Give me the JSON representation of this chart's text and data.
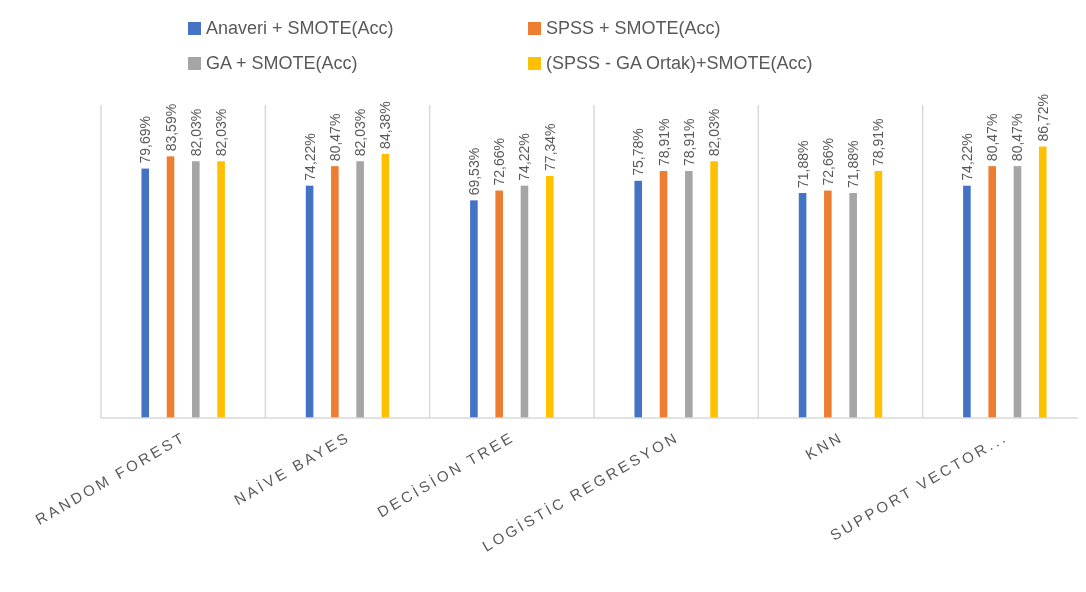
{
  "chart_data": {
    "type": "bar",
    "categories": [
      "RANDOM FOREST",
      "NAİVE BAYES",
      "DECİSİON TREE",
      "LOGİSTİC REGRESYON",
      "KNN",
      "SUPPORT VECTOR..."
    ],
    "series": [
      {
        "name": "Anaveri + SMOTE(Acc)",
        "color": "#4472c4",
        "values": [
          79.69,
          74.22,
          69.53,
          75.78,
          71.88,
          74.22
        ],
        "value_labels": [
          "79,69%",
          "74,22%",
          "69,53%",
          "75,78%",
          "71,88%",
          "74,22%"
        ]
      },
      {
        "name": "SPSS + SMOTE(Acc)",
        "color": "#ed7d31",
        "values": [
          83.59,
          80.47,
          72.66,
          78.91,
          72.66,
          80.47
        ],
        "value_labels": [
          "83,59%",
          "80,47%",
          "72,66%",
          "78,91%",
          "72,66%",
          "80,47%"
        ]
      },
      {
        "name": "GA + SMOTE(Acc)",
        "color": "#a5a5a5",
        "values": [
          82.03,
          82.03,
          74.22,
          78.91,
          71.88,
          80.47
        ],
        "value_labels": [
          "82,03%",
          "82,03%",
          "74,22%",
          "78,91%",
          "71,88%",
          "80,47%"
        ]
      },
      {
        "name": "(SPSS - GA Ortak)+SMOTE(Acc)",
        "color": "#ffc000",
        "values": [
          82.03,
          84.38,
          77.34,
          82.03,
          78.91,
          86.72
        ],
        "value_labels": [
          "82,03%",
          "84,38%",
          "77,34%",
          "82,03%",
          "78,91%",
          "86,72%"
        ]
      }
    ],
    "ylim": [
      0,
      100
    ],
    "tick_labels": "x",
    "legend": "top"
  }
}
